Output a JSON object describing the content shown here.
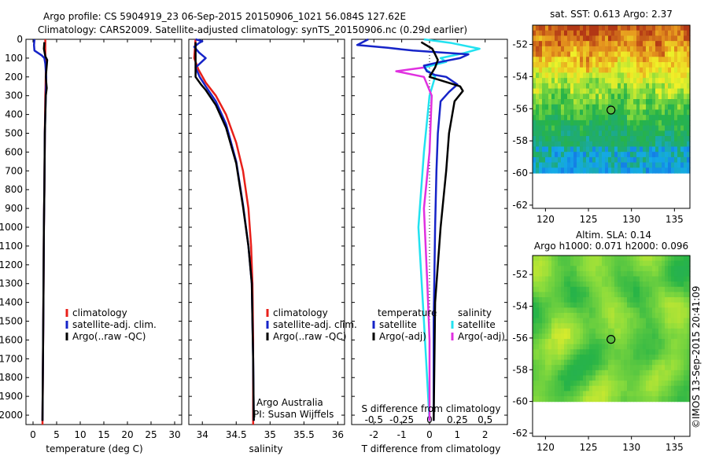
{
  "title": {
    "line1": "Argo profile: CS 5904919_23 06-Sep-2015 20150906_1021 56.084S 127.62E",
    "line2": "Climatology: CARS2009. Satellite-adjusted climatology: synTS_20150906.nc (0.29d earlier)"
  },
  "credit": "©IMOS 13-Sep-2015 20:41:09",
  "colors": {
    "climatology": "#e8201a",
    "satellite": "#1624c8",
    "argo": "#000000",
    "sat_salinity": "#22e2f0",
    "argo_salinity": "#e030e0"
  },
  "chart_data": [
    {
      "type": "line",
      "id": "temperature",
      "xlabel": "temperature (deg C)",
      "ylabel": "",
      "xlim": [
        -1.5,
        31.5
      ],
      "ylim": [
        0,
        2050
      ],
      "x_ticks": [
        0,
        5,
        10,
        15,
        20,
        25,
        30
      ],
      "y_ticks": [
        0,
        100,
        200,
        300,
        400,
        500,
        600,
        700,
        800,
        900,
        1000,
        1100,
        1200,
        1300,
        1400,
        1500,
        1600,
        1700,
        1800,
        1900,
        2000
      ],
      "legend": [
        "climatology",
        "satellite-adj. clim.",
        "Argo(..raw -QC)"
      ],
      "series": [
        {
          "name": "climatology",
          "color": "#e8201a",
          "points": [
            [
              2.6,
              0
            ],
            [
              2.6,
              100
            ],
            [
              2.7,
              150
            ],
            [
              2.7,
              200
            ],
            [
              2.6,
              300
            ],
            [
              2.5,
              500
            ],
            [
              2.4,
              800
            ],
            [
              2.3,
              1000
            ],
            [
              2.2,
              1400
            ],
            [
              2.0,
              2050
            ]
          ]
        },
        {
          "name": "satellite-adj. clim.",
          "color": "#1624c8",
          "points": [
            [
              0.3,
              0
            ],
            [
              0.2,
              30
            ],
            [
              0.3,
              60
            ],
            [
              1.8,
              85
            ],
            [
              2.4,
              100
            ],
            [
              2.6,
              130
            ],
            [
              2.8,
              200
            ],
            [
              2.7,
              300
            ],
            [
              2.5,
              500
            ],
            [
              2.4,
              800
            ],
            [
              2.3,
              1000
            ],
            [
              2.2,
              1400
            ],
            [
              2.0,
              2030
            ]
          ]
        },
        {
          "name": "Argo(..raw -QC)",
          "color": "#000000",
          "points": [
            [
              2.4,
              15
            ],
            [
              2.3,
              50
            ],
            [
              2.6,
              90
            ],
            [
              3.0,
              110
            ],
            [
              2.9,
              140
            ],
            [
              2.7,
              200
            ],
            [
              2.9,
              260
            ],
            [
              2.7,
              300
            ],
            [
              2.5,
              500
            ],
            [
              2.4,
              800
            ],
            [
              2.3,
              1000
            ],
            [
              2.2,
              1400
            ],
            [
              2.0,
              2030
            ]
          ]
        }
      ]
    },
    {
      "type": "line",
      "id": "salinity",
      "xlabel": "salinity",
      "ylabel": "",
      "xlim": [
        33.8,
        36.1
      ],
      "ylim": [
        0,
        2050
      ],
      "x_ticks": [
        34,
        34.5,
        35,
        35.5,
        36
      ],
      "legend": [
        "climatology",
        "satellite-adj. clim.",
        "Argo(..raw -QC)"
      ],
      "annotation": [
        "Argo Australia",
        "PI: Susan Wijffels"
      ],
      "series": [
        {
          "name": "climatology",
          "color": "#e8201a",
          "points": [
            [
              33.9,
              0
            ],
            [
              33.88,
              100
            ],
            [
              33.94,
              160
            ],
            [
              34.05,
              230
            ],
            [
              34.2,
              300
            ],
            [
              34.35,
              400
            ],
            [
              34.5,
              550
            ],
            [
              34.6,
              700
            ],
            [
              34.68,
              900
            ],
            [
              34.72,
              1100
            ],
            [
              34.74,
              1300
            ],
            [
              34.75,
              1600
            ],
            [
              34.75,
              2050
            ]
          ]
        },
        {
          "name": "satellite-adj. clim.",
          "color": "#1624c8",
          "points": [
            [
              33.9,
              0
            ],
            [
              34.0,
              10
            ],
            [
              33.95,
              20
            ],
            [
              33.88,
              40
            ],
            [
              33.95,
              70
            ],
            [
              34.05,
              100
            ],
            [
              33.9,
              150
            ],
            [
              33.96,
              200
            ],
            [
              34.05,
              250
            ],
            [
              34.2,
              330
            ],
            [
              34.35,
              450
            ],
            [
              34.5,
              650
            ],
            [
              34.6,
              880
            ],
            [
              34.68,
              1100
            ],
            [
              34.73,
              1300
            ],
            [
              34.74,
              1500
            ],
            [
              34.75,
              1700
            ],
            [
              34.76,
              2030
            ]
          ]
        },
        {
          "name": "Argo(..raw -QC)",
          "color": "#000000",
          "points": [
            [
              33.9,
              15
            ],
            [
              33.9,
              100
            ],
            [
              33.9,
              200
            ],
            [
              33.98,
              240
            ],
            [
              34.05,
              270
            ],
            [
              34.2,
              350
            ],
            [
              34.35,
              470
            ],
            [
              34.5,
              660
            ],
            [
              34.6,
              890
            ],
            [
              34.68,
              1100
            ],
            [
              34.73,
              1300
            ],
            [
              34.74,
              1500
            ],
            [
              34.75,
              1700
            ],
            [
              34.76,
              2030
            ]
          ]
        }
      ]
    },
    {
      "type": "line",
      "id": "difference",
      "xlabel": "T difference from climatology",
      "x2label": "S difference from climatology",
      "xlim": [
        -2.8,
        2.8
      ],
      "x2lim": [
        -0.7,
        0.7
      ],
      "ylim": [
        0,
        2050
      ],
      "x_ticks": [
        -2,
        -1,
        0,
        1,
        2
      ],
      "x2_ticks": [
        -0.5,
        -0.25,
        0,
        0.25,
        0.5
      ],
      "x2_tick_labels": [
        "-0.5",
        "-0.25",
        "0",
        "0.25",
        "0.5"
      ],
      "legend_temperature": {
        "heading": "temperature",
        "items": [
          "satellite",
          "Argo(-adj)"
        ]
      },
      "legend_salinity": {
        "heading": "salinity",
        "items": [
          "satellite",
          "Argo(-adj)"
        ]
      },
      "series": [
        {
          "name": "temperature satellite",
          "color": "#1624c8",
          "points": [
            [
              -2.2,
              0
            ],
            [
              -2.4,
              15
            ],
            [
              -2.6,
              30
            ],
            [
              -1.5,
              45
            ],
            [
              -0.6,
              60
            ],
            [
              1.4,
              80
            ],
            [
              1.1,
              100
            ],
            [
              0.4,
              120
            ],
            [
              -0.2,
              140
            ],
            [
              -0.1,
              170
            ],
            [
              0.2,
              190
            ],
            [
              0.6,
              200
            ],
            [
              1.0,
              240
            ],
            [
              0.7,
              280
            ],
            [
              0.4,
              330
            ],
            [
              0.3,
              500
            ],
            [
              0.25,
              700
            ],
            [
              0.2,
              1000
            ],
            [
              0.15,
              1500
            ],
            [
              0.15,
              2030
            ]
          ]
        },
        {
          "name": "temperature Argo(-adj)",
          "color": "#000000",
          "points": [
            [
              -0.3,
              15
            ],
            [
              0.1,
              50
            ],
            [
              0.2,
              80
            ],
            [
              0.3,
              110
            ],
            [
              0.2,
              150
            ],
            [
              0.0,
              200
            ],
            [
              1.1,
              250
            ],
            [
              1.2,
              275
            ],
            [
              0.9,
              330
            ],
            [
              0.7,
              500
            ],
            [
              0.6,
              700
            ],
            [
              0.4,
              1000
            ],
            [
              0.2,
              1400
            ],
            [
              0.15,
              2030
            ]
          ]
        },
        {
          "name": "salinity satellite",
          "color": "#22e2f0",
          "points": [
            [
              -0.05,
              0
            ],
            [
              0.2,
              20
            ],
            [
              0.45,
              50
            ],
            [
              0.3,
              75
            ],
            [
              0.1,
              100
            ],
            [
              0.15,
              120
            ],
            [
              -0.05,
              150
            ],
            [
              0.05,
              200
            ],
            [
              0.0,
              300
            ],
            [
              -0.05,
              600
            ],
            [
              -0.1,
              1000
            ],
            [
              -0.05,
              1500
            ],
            [
              0.0,
              2030
            ]
          ]
        },
        {
          "name": "salinity Argo(-adj)",
          "color": "#e030e0",
          "points": [
            [
              -0.05,
              150
            ],
            [
              -0.3,
              170
            ],
            [
              -0.05,
              200
            ],
            [
              0.02,
              300
            ],
            [
              0.0,
              600
            ],
            [
              -0.05,
              900
            ],
            [
              -0.02,
              1300
            ],
            [
              0.0,
              1600
            ],
            [
              0.0,
              2030
            ]
          ]
        }
      ]
    },
    {
      "type": "heatmap",
      "id": "sst_map",
      "title": "sat. SST: 0.613 Argo: 2.37",
      "xlim": [
        118.5,
        136.8
      ],
      "ylim": [
        -62.2,
        -50.8
      ],
      "x_ticks": [
        120,
        125,
        130,
        135
      ],
      "y_ticks": [
        -52,
        -54,
        -56,
        -58,
        -60,
        -62
      ],
      "marker": {
        "lon": 127.62,
        "lat": -56.084
      }
    },
    {
      "type": "heatmap",
      "id": "sla_map",
      "title": "Altim. SLA: 0.14",
      "subtitle": "Argo h1000: 0.071 h2000: 0.096",
      "xlim": [
        118.5,
        136.8
      ],
      "ylim": [
        -62.2,
        -50.8
      ],
      "x_ticks": [
        120,
        125,
        130,
        135
      ],
      "y_ticks": [
        -52,
        -54,
        -56,
        -58,
        -60,
        -62
      ],
      "marker": {
        "lon": 127.62,
        "lat": -56.084
      }
    }
  ]
}
